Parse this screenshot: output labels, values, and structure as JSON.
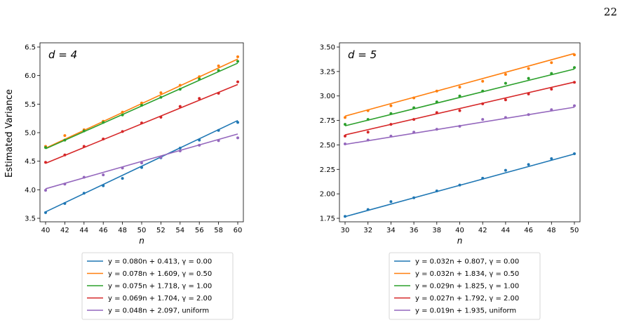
{
  "page": {
    "number": "22"
  },
  "shared": {
    "ylabel": "Estimated Variance",
    "xlabel": "n"
  },
  "colors": {
    "blue": "#1f77b4",
    "orange": "#ff7f0e",
    "green": "#2ca02c",
    "red": "#d62728",
    "purple": "#9467bd"
  },
  "chart_data": [
    {
      "type": "line",
      "panel_label": "d = 4",
      "xlabel": "n",
      "ylabel": "Estimated Variance",
      "xlim": [
        40,
        60
      ],
      "ylim": [
        3.5,
        6.5
      ],
      "xticks": [
        40,
        42,
        44,
        46,
        48,
        50,
        52,
        54,
        56,
        58,
        60
      ],
      "yticks": [
        3.5,
        4.0,
        4.5,
        5.0,
        5.5,
        6.0,
        6.5
      ],
      "ytick_labels": [
        "3.5",
        "4.0",
        "4.5",
        "5.0",
        "5.5",
        "6.0",
        "6.5"
      ],
      "x": [
        40,
        42,
        44,
        46,
        48,
        50,
        52,
        54,
        56,
        58,
        60
      ],
      "legend_position": "below",
      "series": [
        {
          "name": "y = 0.080n + 0.413, γ = 0.00",
          "color": "blue",
          "slope": 0.08,
          "intercept": 0.413,
          "points": [
            3.6,
            3.76,
            3.94,
            4.07,
            4.2,
            4.39,
            4.56,
            4.73,
            4.87,
            5.04,
            5.18
          ]
        },
        {
          "name": "y = 0.078n + 1.609, γ = 0.50",
          "color": "orange",
          "slope": 0.078,
          "intercept": 1.609,
          "points": [
            4.76,
            4.95,
            5.05,
            5.2,
            5.36,
            5.52,
            5.7,
            5.83,
            5.98,
            6.17,
            6.33
          ]
        },
        {
          "name": "y = 0.075n + 1.718, γ = 1.00",
          "color": "green",
          "slope": 0.075,
          "intercept": 1.718,
          "points": [
            4.74,
            4.87,
            5.03,
            5.18,
            5.31,
            5.48,
            5.62,
            5.76,
            5.94,
            6.09,
            6.25
          ]
        },
        {
          "name": "y = 0.069n + 1.704, γ = 2.00",
          "color": "red",
          "slope": 0.069,
          "intercept": 1.704,
          "points": [
            4.48,
            4.61,
            4.76,
            4.89,
            5.02,
            5.17,
            5.27,
            5.46,
            5.6,
            5.69,
            5.89
          ]
        },
        {
          "name": "y = 0.048n + 2.097, uniform",
          "color": "purple",
          "slope": 0.048,
          "intercept": 2.097,
          "points": [
            3.99,
            4.1,
            4.22,
            4.26,
            4.38,
            4.47,
            4.57,
            4.68,
            4.78,
            4.86,
            4.91
          ]
        }
      ]
    },
    {
      "type": "line",
      "panel_label": "d = 5",
      "xlabel": "n",
      "ylabel": "",
      "xlim": [
        30,
        50
      ],
      "ylim": [
        1.75,
        3.5
      ],
      "xticks": [
        30,
        32,
        34,
        36,
        38,
        40,
        42,
        44,
        46,
        48,
        50
      ],
      "yticks": [
        1.75,
        2.0,
        2.25,
        2.5,
        2.75,
        3.0,
        3.25,
        3.5
      ],
      "ytick_labels": [
        "1.75",
        "2.00",
        "2.25",
        "2.50",
        "2.75",
        "3.00",
        "3.25",
        "3.50"
      ],
      "x": [
        30,
        32,
        34,
        36,
        38,
        40,
        42,
        44,
        46,
        48,
        50
      ],
      "legend_position": "below",
      "series": [
        {
          "name": "y = 0.032n + 0.807, γ = 0.00",
          "color": "blue",
          "slope": 0.032,
          "intercept": 0.807,
          "points": [
            1.77,
            1.84,
            1.92,
            1.96,
            2.03,
            2.09,
            2.16,
            2.24,
            2.3,
            2.36,
            2.41
          ]
        },
        {
          "name": "y = 0.032n + 1.834, γ = 0.50",
          "color": "orange",
          "slope": 0.032,
          "intercept": 1.834,
          "points": [
            2.78,
            2.85,
            2.9,
            2.98,
            3.05,
            3.09,
            3.15,
            3.22,
            3.28,
            3.34,
            3.42
          ]
        },
        {
          "name": "y = 0.029n + 1.825, γ = 1.00",
          "color": "green",
          "slope": 0.029,
          "intercept": 1.825,
          "points": [
            2.71,
            2.76,
            2.82,
            2.88,
            2.94,
            3.0,
            3.05,
            3.13,
            3.18,
            3.23,
            3.29
          ]
        },
        {
          "name": "y = 0.027n + 1.792, γ = 2.00",
          "color": "red",
          "slope": 0.027,
          "intercept": 1.792,
          "points": [
            2.59,
            2.63,
            2.71,
            2.76,
            2.83,
            2.85,
            2.92,
            2.96,
            3.02,
            3.07,
            3.14
          ]
        },
        {
          "name": "y = 0.019n + 1.935, uniform",
          "color": "purple",
          "slope": 0.019,
          "intercept": 1.935,
          "points": [
            2.51,
            2.55,
            2.59,
            2.63,
            2.66,
            2.69,
            2.76,
            2.78,
            2.81,
            2.86,
            2.9
          ]
        }
      ]
    }
  ]
}
